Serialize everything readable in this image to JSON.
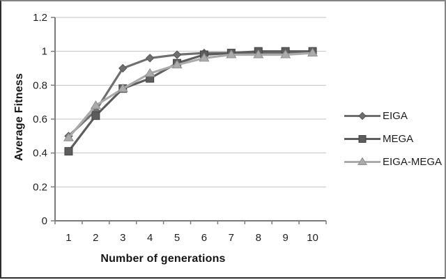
{
  "colors": {
    "grid": "#c2c2c2",
    "axis": "#7b7b7b",
    "text": "#1f1f1f",
    "frame": "#5a5a5a",
    "background": "#ffffff"
  },
  "chart_data": {
    "type": "line",
    "title": "",
    "xlabel": "Number of generations",
    "ylabel": "Average Fitness",
    "x": [
      1,
      2,
      3,
      4,
      5,
      6,
      7,
      8,
      9,
      10
    ],
    "ylim": [
      0,
      1.2
    ],
    "yticks": [
      0,
      0.2,
      0.4,
      0.6,
      0.8,
      1,
      1.2
    ],
    "ytick_labels": [
      "0",
      "0.2",
      "0.4",
      "0.6",
      "0.8",
      "1",
      "1.2"
    ],
    "grid": "horizontal",
    "legend_position": "right",
    "series": [
      {
        "name": "EIGA",
        "marker": "diamond",
        "color": "#6f6f6f",
        "marker_edge": "#565656",
        "values": [
          0.5,
          0.65,
          0.9,
          0.96,
          0.98,
          0.99,
          0.99,
          0.99,
          0.99,
          1.0
        ]
      },
      {
        "name": "MEGA",
        "marker": "square",
        "color": "#5d5d5d",
        "marker_edge": "#454545",
        "values": [
          0.41,
          0.62,
          0.78,
          0.84,
          0.93,
          0.98,
          0.99,
          1.0,
          1.0,
          1.0
        ]
      },
      {
        "name": "EIGA-MEGA",
        "marker": "triangle",
        "color": "#ababab",
        "marker_edge": "#8f8f8f",
        "values": [
          0.49,
          0.68,
          0.78,
          0.87,
          0.92,
          0.96,
          0.98,
          0.98,
          0.98,
          0.99
        ]
      }
    ]
  }
}
